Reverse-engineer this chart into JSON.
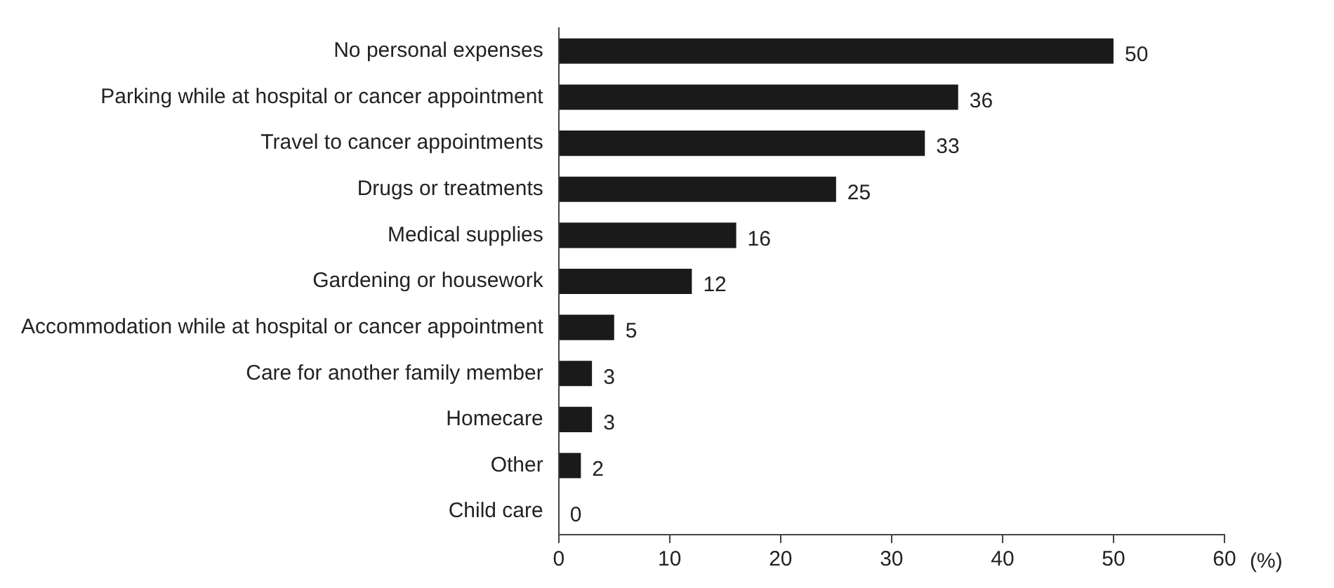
{
  "chart_data": {
    "type": "bar",
    "orientation": "horizontal",
    "xlabel": "(%)",
    "categories": [
      "No personal expenses",
      "Parking while at hospital or cancer appointment",
      "Travel to cancer appointments",
      "Drugs or treatments",
      "Medical supplies",
      "Gardening or housework",
      "Accommodation while at hospital or cancer appointment",
      "Care for another family member",
      "Homecare",
      "Other",
      "Child care"
    ],
    "values": [
      50,
      36,
      33,
      25,
      16,
      12,
      5,
      3,
      3,
      2,
      0
    ],
    "color": "#1a1a1a",
    "data_labels": true,
    "xlim": [
      0,
      60
    ],
    "xticks": [
      0,
      10,
      20,
      30,
      40,
      50,
      60
    ],
    "grid": false,
    "legend": false
  }
}
